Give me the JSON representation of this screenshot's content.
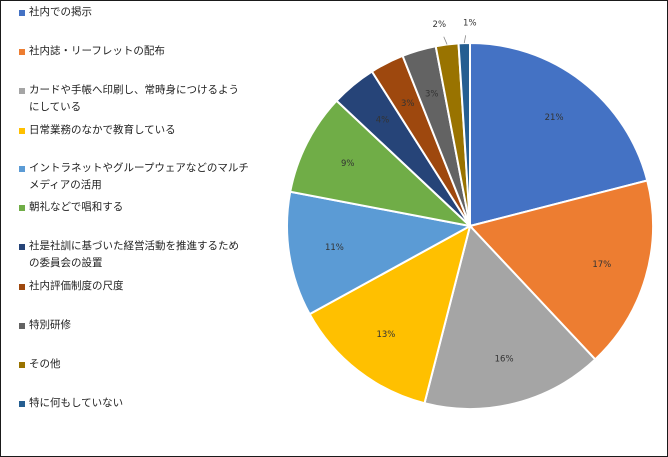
{
  "chart_data": {
    "type": "pie",
    "legend_position": "left",
    "slices": [
      {
        "label": "社内での掲示",
        "value": 21,
        "color": "#4472C4",
        "text": "21%"
      },
      {
        "label": "社内誌・リーフレットの配布",
        "value": 17,
        "color": "#ED7D31",
        "text": "17%"
      },
      {
        "label": "カードや手帳へ印刷し、常時身につけるようにしている",
        "value": 16,
        "color": "#A5A5A5",
        "text": "16%"
      },
      {
        "label": "日常業務のなかで教育している",
        "value": 13,
        "color": "#FFC000",
        "text": "13%"
      },
      {
        "label": "イントラネットやグループウェアなどのマルチメディアの活用",
        "value": 11,
        "color": "#5B9BD5",
        "text": "11%"
      },
      {
        "label": "朝礼などで唱和する",
        "value": 9,
        "color": "#70AD47",
        "text": "9%"
      },
      {
        "label": "社是社訓に基づいた経営活動を推進するための委員会の設置",
        "value": 4,
        "color": "#264478",
        "text": "4%"
      },
      {
        "label": "社内評価制度の尺度",
        "value": 3,
        "color": "#9E480E",
        "text": "3%"
      },
      {
        "label": "特別研修",
        "value": 3,
        "color": "#636363",
        "text": "3%"
      },
      {
        "label": "その他",
        "value": 2,
        "color": "#997300",
        "text": "2%"
      },
      {
        "label": "特に何もしていない",
        "value": 1,
        "color": "#255E91",
        "text": "1%"
      }
    ]
  }
}
